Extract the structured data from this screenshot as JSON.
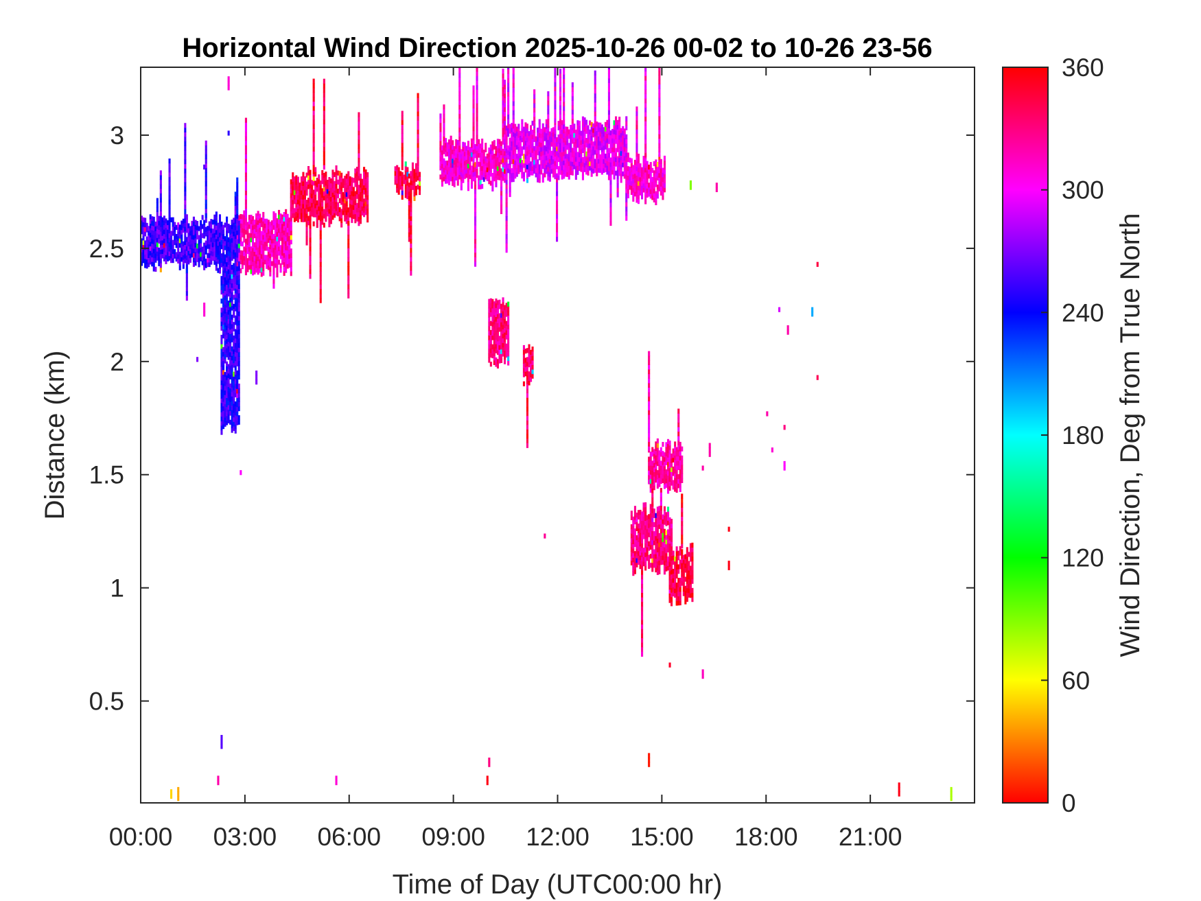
{
  "chart_data": {
    "type": "heatmap",
    "title": "Horizontal Wind Direction 2025-10-26 00-02 to 10-26 23-56",
    "xlabel": "Time of Day (UTC00:00 hr)",
    "ylabel": "Distance (km)",
    "colorbar_label": "Wind Direction, Deg from True North",
    "x_unit": "hours",
    "xlim": [
      0,
      24
    ],
    "ylim": [
      0.05,
      3.3
    ],
    "clim": [
      0,
      360
    ],
    "colormap": "hsv (0 red → 60 yellow → 120 green → 180 cyan → 240 blue → 300 magenta → 360 red)",
    "grid": false,
    "x_ticks": [
      0,
      3,
      6,
      9,
      12,
      15,
      18,
      21
    ],
    "x_tick_labels": [
      "00:00",
      "03:00",
      "06:00",
      "09:00",
      "12:00",
      "15:00",
      "18:00",
      "21:00"
    ],
    "y_ticks": [
      0.5,
      1,
      1.5,
      2,
      2.5,
      3
    ],
    "y_tick_labels": [
      "0.5",
      "1",
      "1.5",
      "2",
      "2.5",
      "3"
    ],
    "colorbar_ticks": [
      0,
      60,
      120,
      180,
      240,
      300,
      360
    ],
    "colorbar_tick_labels": [
      "0",
      "60",
      "120",
      "180",
      "240",
      "300",
      "360"
    ],
    "regions": [
      {
        "name": "layer-blue-west",
        "x0": 0,
        "x1": 2.3,
        "y0": 2.42,
        "y1": 2.62,
        "dir": 255
      },
      {
        "name": "layer-magenta-1",
        "x0": 2.7,
        "x1": 4.3,
        "y0": 2.4,
        "y1": 2.64,
        "dir": 315
      },
      {
        "name": "layer-red-pink",
        "x0": 4.3,
        "x1": 6.5,
        "y0": 2.62,
        "y1": 2.82,
        "dir": 340
      },
      {
        "name": "patch-0730",
        "x0": 7.3,
        "x1": 8.0,
        "y0": 2.74,
        "y1": 2.84,
        "dir": 340
      },
      {
        "name": "layer-upper-1",
        "x0": 8.6,
        "x1": 10.5,
        "y0": 2.78,
        "y1": 2.96,
        "dir": 310
      },
      {
        "name": "layer-upper-2",
        "x0": 10.5,
        "x1": 14.0,
        "y0": 2.82,
        "y1": 3.04,
        "dir": 300
      },
      {
        "name": "layer-upper-3",
        "x0": 14.0,
        "x1": 15.1,
        "y0": 2.72,
        "y1": 2.88,
        "dir": 310
      },
      {
        "name": "column-0230",
        "x0": 2.3,
        "x1": 2.8,
        "y0": 1.7,
        "y1": 2.62,
        "dir": 250
      },
      {
        "name": "patch-1000",
        "x0": 10.0,
        "x1": 10.6,
        "y0": 2.0,
        "y1": 2.28,
        "dir": 330
      },
      {
        "name": "patch-1100",
        "x0": 11.0,
        "x1": 11.3,
        "y0": 1.92,
        "y1": 2.04,
        "dir": 335
      },
      {
        "name": "patch-1500-upper",
        "x0": 14.6,
        "x1": 15.6,
        "y0": 1.44,
        "y1": 1.62,
        "dir": 320
      },
      {
        "name": "patch-1500-lower",
        "x0": 14.1,
        "x1": 15.3,
        "y0": 1.08,
        "y1": 1.34,
        "dir": 330
      },
      {
        "name": "patch-1530-low",
        "x0": 15.2,
        "x1": 15.9,
        "y0": 0.95,
        "y1": 1.16,
        "dir": 345
      }
    ],
    "isolated_points": [
      {
        "x": 2.3,
        "y": 0.29,
        "dir": 260
      },
      {
        "x": 2.2,
        "y": 0.13,
        "dir": 320
      },
      {
        "x": 0.85,
        "y": 0.07,
        "dir": 50
      },
      {
        "x": 1.05,
        "y": 0.06,
        "dir": 40
      },
      {
        "x": 5.6,
        "y": 0.13,
        "dir": 310
      },
      {
        "x": 10.0,
        "y": 0.21,
        "dir": 330
      },
      {
        "x": 9.95,
        "y": 0.13,
        "dir": 355
      },
      {
        "x": 14.6,
        "y": 0.21,
        "dir": 5
      },
      {
        "x": 15.2,
        "y": 0.65,
        "dir": 350
      },
      {
        "x": 16.15,
        "y": 0.6,
        "dir": 315
      },
      {
        "x": 11.6,
        "y": 1.22,
        "dir": 325
      },
      {
        "x": 16.9,
        "y": 1.25,
        "dir": 355
      },
      {
        "x": 16.9,
        "y": 1.08,
        "dir": 355
      },
      {
        "x": 21.8,
        "y": 0.08,
        "dir": 355
      },
      {
        "x": 23.3,
        "y": 0.06,
        "dir": 80
      },
      {
        "x": 19.45,
        "y": 2.42,
        "dir": 345
      },
      {
        "x": 19.3,
        "y": 2.2,
        "dir": 200
      },
      {
        "x": 19.45,
        "y": 1.92,
        "dir": 340
      },
      {
        "x": 18.35,
        "y": 2.22,
        "dir": 290
      },
      {
        "x": 18.6,
        "y": 2.12,
        "dir": 320
      },
      {
        "x": 18.0,
        "y": 1.76,
        "dir": 320
      },
      {
        "x": 18.15,
        "y": 1.6,
        "dir": 310
      },
      {
        "x": 18.5,
        "y": 1.7,
        "dir": 330
      },
      {
        "x": 18.5,
        "y": 1.52,
        "dir": 300
      },
      {
        "x": 16.15,
        "y": 1.52,
        "dir": 320
      },
      {
        "x": 16.35,
        "y": 1.58,
        "dir": 320
      },
      {
        "x": 16.55,
        "y": 2.75,
        "dir": 320
      },
      {
        "x": 15.8,
        "y": 2.76,
        "dir": 90
      },
      {
        "x": 3.3,
        "y": 1.9,
        "dir": 270
      },
      {
        "x": 1.6,
        "y": 2.0,
        "dir": 270
      },
      {
        "x": 1.8,
        "y": 2.2,
        "dir": 310
      },
      {
        "x": 2.5,
        "y": 3.2,
        "dir": 310
      },
      {
        "x": 2.5,
        "y": 3.0,
        "dir": 250
      },
      {
        "x": 1.8,
        "y": 2.85,
        "dir": 260
      },
      {
        "x": 2.85,
        "y": 1.5,
        "dir": 300
      }
    ]
  }
}
